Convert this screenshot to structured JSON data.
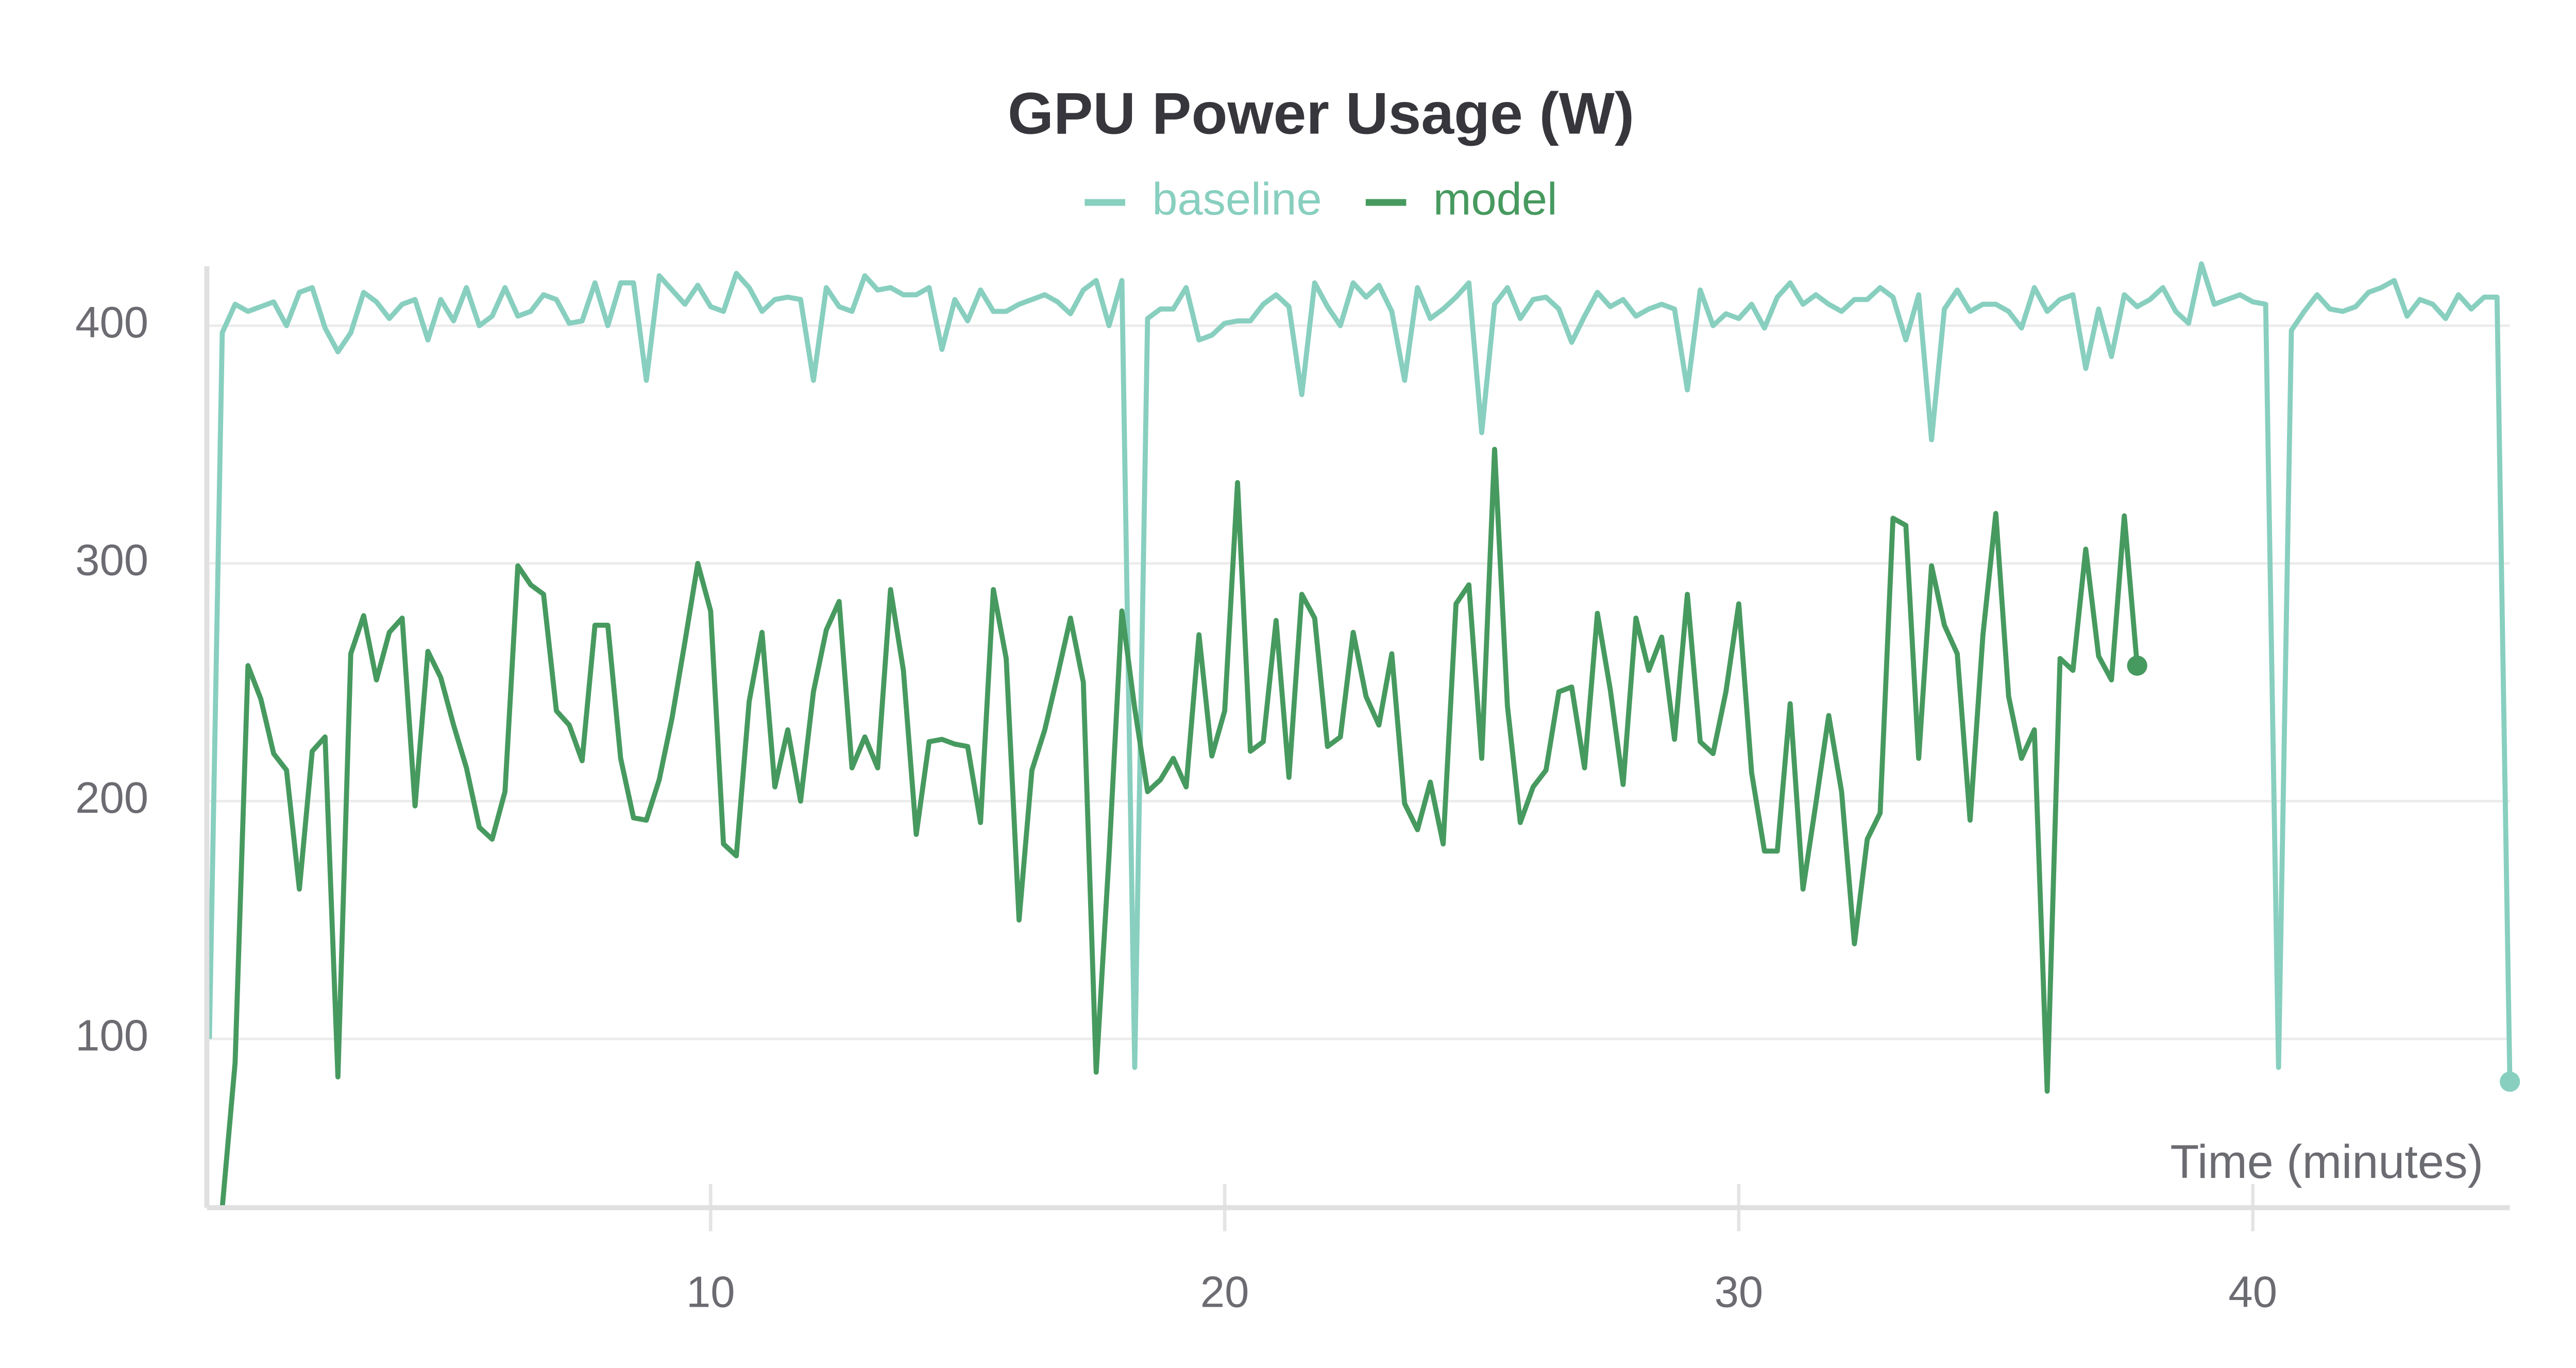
{
  "chart_data": {
    "type": "line",
    "title": "GPU Power Usage (W)",
    "x_label": "Time (minutes)",
    "legend": "top",
    "grid": true,
    "xlim": [
      0.2,
      45
    ],
    "xticks": [
      10,
      20,
      30,
      40
    ],
    "ylim": [
      29,
      425
    ],
    "yticks": [
      100,
      200,
      300,
      400
    ],
    "series": [
      {
        "name": "baseline",
        "color": "#88cfbf",
        "x": [
          0.25,
          0.5,
          0.75,
          1,
          1.25,
          1.5,
          1.75,
          2,
          2.25,
          2.5,
          2.75,
          3,
          3.25,
          3.5,
          3.75,
          4,
          4.25,
          4.5,
          4.75,
          5,
          5.25,
          5.5,
          5.75,
          6,
          6.25,
          6.5,
          6.75,
          7,
          7.25,
          7.5,
          7.75,
          8,
          8.25,
          8.5,
          8.75,
          9,
          9.25,
          9.5,
          9.75,
          10,
          10.25,
          10.5,
          10.75,
          11,
          11.25,
          11.5,
          11.75,
          12,
          12.25,
          12.5,
          12.75,
          13,
          13.25,
          13.5,
          13.75,
          14,
          14.25,
          14.5,
          14.75,
          15,
          15.25,
          15.5,
          15.75,
          16,
          16.25,
          16.5,
          16.75,
          17,
          17.25,
          17.5,
          17.75,
          18,
          18.25,
          18.5,
          18.75,
          19,
          19.25,
          19.5,
          19.75,
          20,
          20.25,
          20.5,
          20.75,
          21,
          21.25,
          21.5,
          21.75,
          22,
          22.25,
          22.5,
          22.75,
          23,
          23.25,
          23.5,
          23.75,
          24,
          24.25,
          24.5,
          24.75,
          25,
          25.25,
          25.5,
          25.75,
          26,
          26.25,
          26.5,
          26.75,
          27,
          27.25,
          27.5,
          27.75,
          28,
          28.25,
          28.5,
          28.75,
          29,
          29.25,
          29.5,
          29.75,
          30,
          30.25,
          30.5,
          30.75,
          31,
          31.25,
          31.5,
          31.75,
          32,
          32.25,
          32.5,
          32.75,
          33,
          33.25,
          33.5,
          33.75,
          34,
          34.25,
          34.5,
          34.75,
          35,
          35.25,
          35.5,
          35.75,
          36,
          36.25,
          36.5,
          36.75,
          37,
          37.25,
          37.5,
          37.75,
          38,
          38.25,
          38.5,
          38.75,
          39,
          39.25,
          39.5,
          39.75,
          40,
          40.25,
          40.5,
          40.75,
          41,
          41.25,
          41.5,
          41.75,
          42,
          42.25,
          42.5,
          42.75,
          43,
          43.25,
          43.5,
          43.75,
          44,
          44.25,
          44.5,
          44.75,
          45
        ],
        "values": [
          100,
          397,
          409,
          406,
          408,
          410,
          400,
          414,
          416,
          399,
          389,
          397,
          414,
          410,
          403,
          409,
          411,
          394,
          411,
          402,
          416,
          400,
          404,
          416,
          404,
          406,
          413,
          411,
          401,
          402,
          418,
          400,
          418,
          418,
          377,
          421,
          415,
          409,
          417,
          408,
          406,
          422,
          416,
          406,
          411,
          412,
          411,
          377,
          416,
          408,
          406,
          421,
          415,
          416,
          413,
          413,
          416,
          390,
          411,
          402,
          415,
          406,
          406,
          409,
          411,
          413,
          410,
          405,
          415,
          419,
          400,
          419,
          88,
          403,
          407,
          407,
          416,
          394,
          396,
          401,
          402,
          402,
          409,
          413,
          408,
          371,
          418,
          408,
          400,
          418,
          412,
          417,
          406,
          377,
          416,
          403,
          407,
          412,
          418,
          355,
          409,
          416,
          403,
          411,
          412,
          407,
          393,
          404,
          414,
          408,
          411,
          404,
          407,
          409,
          407,
          373,
          415,
          400,
          405,
          403,
          409,
          399,
          412,
          418,
          409,
          413,
          409,
          406,
          411,
          411,
          416,
          412,
          394,
          413,
          352,
          407,
          415,
          406,
          409,
          409,
          406,
          399,
          416,
          406,
          411,
          413,
          382,
          407,
          387,
          413,
          408,
          411,
          416,
          406,
          401,
          426,
          409,
          411,
          413,
          410,
          409,
          88,
          398,
          406,
          413,
          407,
          406,
          408,
          414,
          416,
          419,
          404,
          411,
          409,
          403,
          413,
          407,
          412,
          412,
          82
        ]
      },
      {
        "name": "model",
        "color": "#479a5f",
        "x": [
          0.5,
          0.75,
          1,
          1.25,
          1.5,
          1.75,
          2,
          2.25,
          2.5,
          2.75,
          3,
          3.25,
          3.5,
          3.75,
          4,
          4.25,
          4.5,
          4.75,
          5,
          5.25,
          5.5,
          5.75,
          6,
          6.25,
          6.5,
          6.75,
          7,
          7.25,
          7.5,
          7.75,
          8,
          8.25,
          8.5,
          8.75,
          9,
          9.25,
          9.5,
          9.75,
          10,
          10.25,
          10.5,
          10.75,
          11,
          11.25,
          11.5,
          11.75,
          12,
          12.25,
          12.5,
          12.75,
          13,
          13.25,
          13.5,
          13.75,
          14,
          14.25,
          14.5,
          14.75,
          15,
          15.25,
          15.5,
          15.75,
          16,
          16.25,
          16.5,
          16.75,
          17,
          17.25,
          17.5,
          17.75,
          18,
          18.25,
          18.5,
          18.75,
          19,
          19.25,
          19.5,
          19.75,
          20,
          20.25,
          20.5,
          20.75,
          21,
          21.25,
          21.5,
          21.75,
          22,
          22.25,
          22.5,
          22.75,
          23,
          23.25,
          23.5,
          23.75,
          24,
          24.25,
          24.5,
          24.75,
          25,
          25.25,
          25.5,
          25.75,
          26,
          26.25,
          26.5,
          26.75,
          27,
          27.25,
          27.5,
          27.75,
          28,
          28.25,
          28.5,
          28.75,
          29,
          29.25,
          29.5,
          29.75,
          30,
          30.25,
          30.5,
          30.75,
          31,
          31.25,
          31.5,
          31.75,
          32,
          32.25,
          32.5,
          32.75,
          33,
          33.25,
          33.5,
          33.75,
          34,
          34.25,
          34.5,
          34.75,
          35,
          35.25,
          35.5,
          35.75,
          36,
          36.25,
          36.5,
          36.75,
          37,
          37.25,
          37.5,
          37.75
        ],
        "values": [
          29,
          90,
          257,
          243,
          220,
          213,
          163,
          221,
          227,
          84,
          262,
          278,
          251,
          271,
          277,
          198,
          263,
          252,
          232,
          214,
          189,
          184,
          204,
          299,
          291,
          287,
          238,
          232,
          217,
          274,
          274,
          218,
          193,
          192,
          209,
          235,
          267,
          300,
          280,
          182,
          177,
          242,
          271,
          206,
          230,
          200,
          246,
          272,
          284,
          214,
          227,
          214,
          289,
          255,
          186,
          225,
          226,
          224,
          223,
          191,
          289,
          260,
          150,
          213,
          230,
          253,
          277,
          250,
          86,
          177,
          280,
          239,
          204,
          209,
          218,
          206,
          270,
          219,
          238,
          334,
          221,
          225,
          276,
          210,
          287,
          277,
          223,
          227,
          271,
          244,
          232,
          262,
          199,
          188,
          208,
          182,
          283,
          291,
          218,
          348,
          240,
          191,
          206,
          213,
          246,
          248,
          214,
          279,
          247,
          207,
          277,
          255,
          269,
          226,
          287,
          225,
          220,
          246,
          283,
          212,
          179,
          179,
          241,
          163,
          199,
          236,
          204,
          140,
          184,
          195,
          319,
          316,
          218,
          299,
          274,
          262,
          192,
          270,
          321,
          244,
          218,
          230,
          78,
          260,
          255,
          306,
          261,
          251,
          320,
          257
        ]
      }
    ]
  }
}
